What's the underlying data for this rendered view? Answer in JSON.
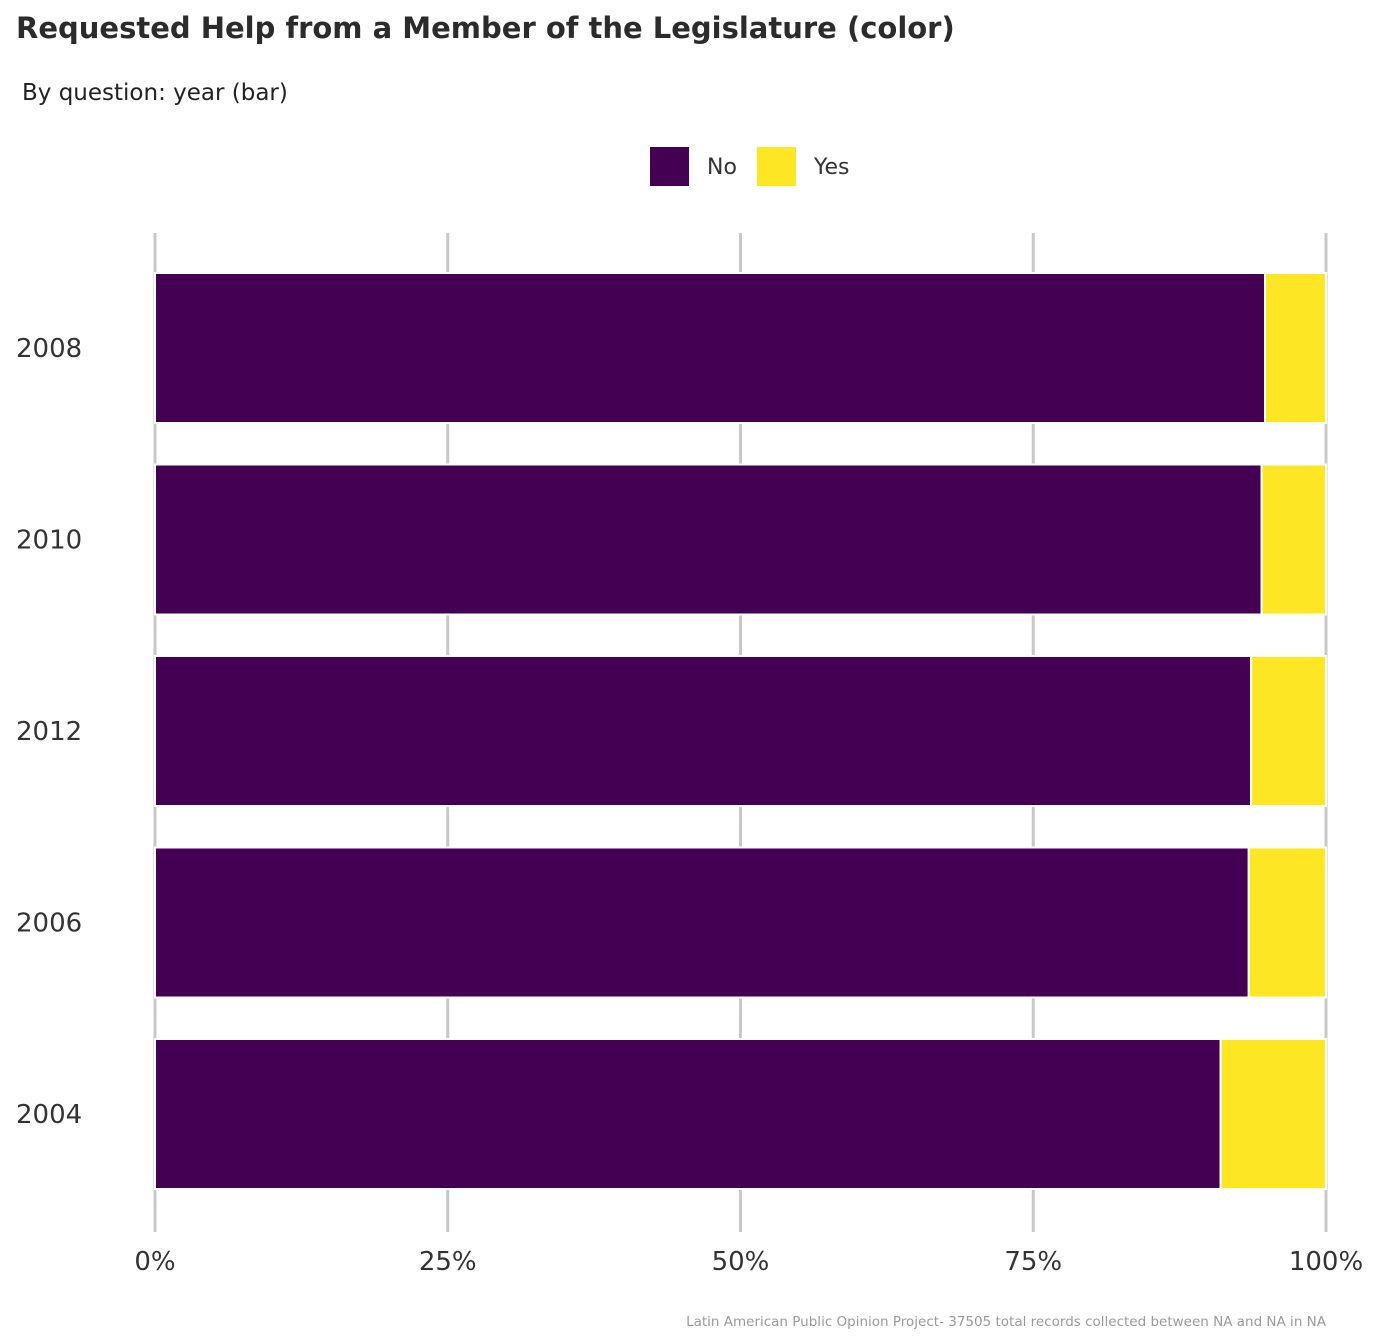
{
  "chart_data": {
    "type": "bar",
    "orientation": "horizontal",
    "stacked": true,
    "normalized": true,
    "title": "Requested Help from a Member of the Legislature (color)",
    "subtitle": "By question: year (bar)",
    "caption": "Latin American Public Opinion Project- 37505 total records collected between NA and NA in  NA",
    "categories": [
      "2008",
      "2010",
      "2012",
      "2006",
      "2004"
    ],
    "series": [
      {
        "name": "No",
        "color": "#440154",
        "values": [
          0.948,
          0.945,
          0.936,
          0.934,
          0.91
        ]
      },
      {
        "name": "Yes",
        "color": "#FDE725",
        "values": [
          0.052,
          0.055,
          0.064,
          0.066,
          0.09
        ]
      }
    ],
    "xlim": [
      0,
      1
    ],
    "xticks": [
      0,
      0.25,
      0.5,
      0.75,
      1
    ],
    "xtick_labels": [
      "0%",
      "25%",
      "50%",
      "75%",
      "100%"
    ],
    "legend_position": "top",
    "grid": "vertical-major"
  }
}
